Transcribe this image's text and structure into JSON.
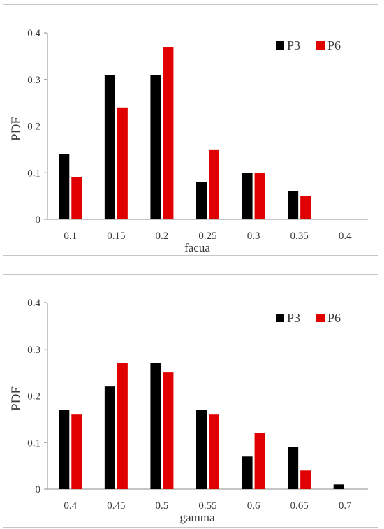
{
  "chart_data": [
    {
      "type": "bar",
      "categories": [
        "0.1",
        "0.15",
        "0.2",
        "0.25",
        "0.3",
        "0.35",
        "0.4"
      ],
      "series": [
        {
          "name": "P3",
          "color": "#000000",
          "values": [
            0.14,
            0.31,
            0.31,
            0.08,
            0.1,
            0.06,
            0
          ]
        },
        {
          "name": "P6",
          "color": "#e00000",
          "values": [
            0.09,
            0.24,
            0.37,
            0.15,
            0.1,
            0.05,
            0
          ]
        }
      ],
      "title": "",
      "xlabel": "facua",
      "ylabel": "PDF",
      "ylim": [
        0,
        0.4
      ],
      "yticks": [
        "0",
        "0.1",
        "0.2",
        "0.3",
        "0.4"
      ],
      "legend": "top-right",
      "grid": false
    },
    {
      "type": "bar",
      "categories": [
        "0.4",
        "0.45",
        "0.5",
        "0.55",
        "0.6",
        "0.65",
        "0.7"
      ],
      "series": [
        {
          "name": "P3",
          "color": "#000000",
          "values": [
            0.17,
            0.22,
            0.27,
            0.17,
            0.07,
            0.09,
            0.01
          ]
        },
        {
          "name": "P6",
          "color": "#e00000",
          "values": [
            0.16,
            0.27,
            0.25,
            0.16,
            0.12,
            0.04,
            0
          ]
        }
      ],
      "title": "",
      "xlabel": "gamma",
      "ylabel": "PDF",
      "ylim": [
        0,
        0.4
      ],
      "yticks": [
        "0",
        "0.1",
        "0.2",
        "0.3",
        "0.4"
      ],
      "legend": "top-right",
      "grid": false
    }
  ]
}
